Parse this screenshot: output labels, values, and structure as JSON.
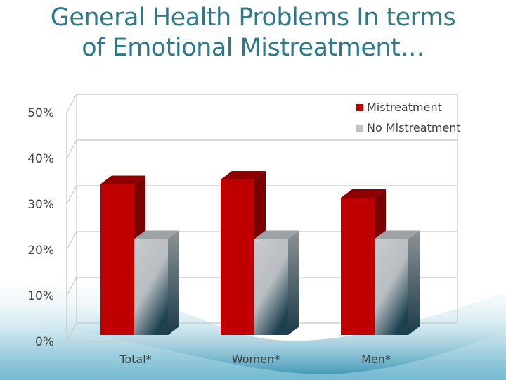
{
  "slide": {
    "title_line1": "General Health Problems In terms",
    "title_line2": "of Emotional Mistreatment…"
  },
  "colors": {
    "title": "#2b7a8c",
    "mistreatment": "#c00000",
    "no_mistreatment": "#bfc3c6",
    "wave": "#2e8fb0"
  },
  "chart_data": {
    "type": "bar",
    "title": "",
    "xlabel": "",
    "ylabel": "",
    "categories": [
      "Total*",
      "Women*",
      "Men*"
    ],
    "series": [
      {
        "name": "Mistreatment",
        "values": [
          33,
          34,
          30
        ]
      },
      {
        "name": "No Mistreatment",
        "values": [
          21,
          21,
          21
        ]
      }
    ],
    "yticks": [
      "0%",
      "10%",
      "20%",
      "30%",
      "40%",
      "50%"
    ],
    "ylim": [
      0,
      50
    ],
    "grid": true,
    "legend": "top-right",
    "style": "3d-clustered-column"
  }
}
